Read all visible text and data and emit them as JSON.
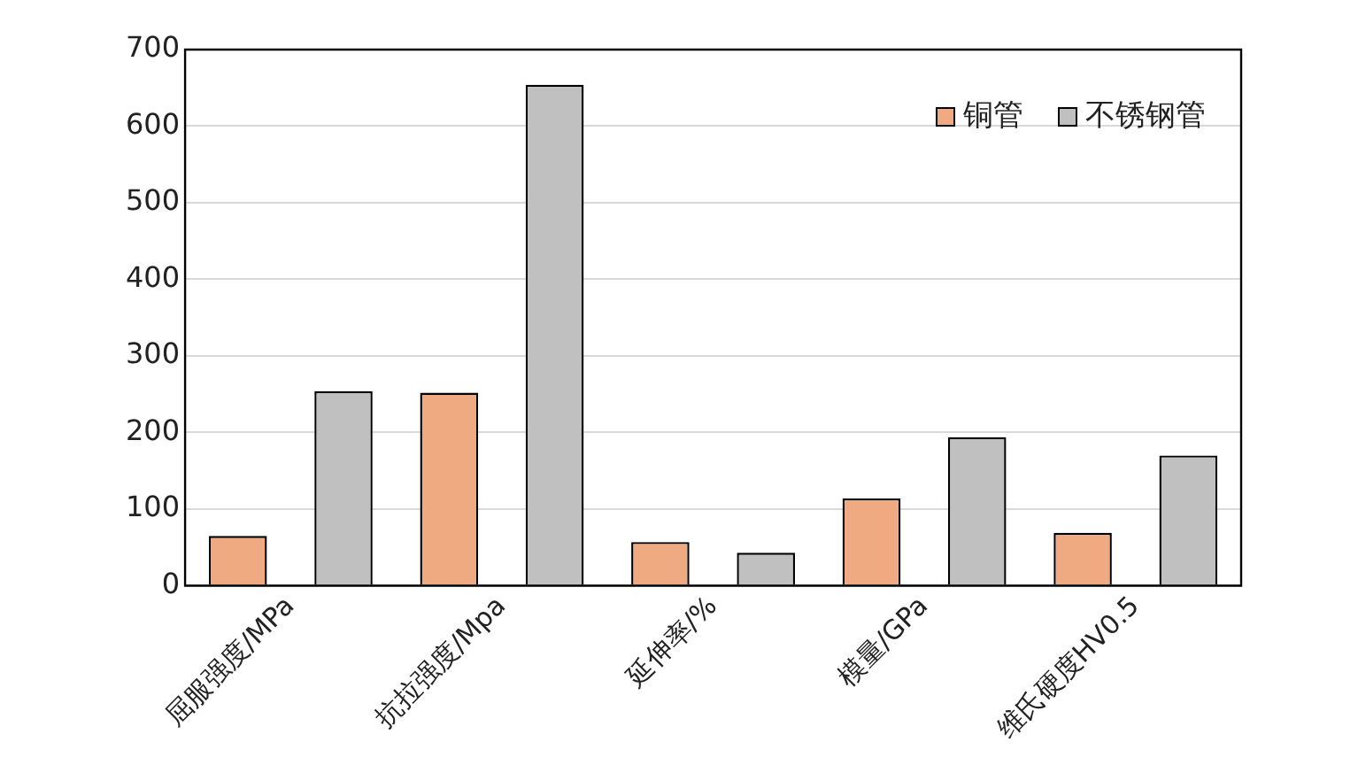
{
  "chart_data": {
    "type": "bar",
    "categories": [
      "屈服强度/MPa",
      "抗拉强度/Mpa",
      "延伸率/%",
      "模量/GPa",
      "维氏硬度HV0.5"
    ],
    "series": [
      {
        "name": "铜管",
        "color": "#f0aa82",
        "values": [
          65,
          252,
          57,
          114,
          69
        ]
      },
      {
        "name": "不锈钢管",
        "color": "#c0c0c0",
        "values": [
          254,
          654,
          43,
          194,
          170
        ]
      }
    ],
    "ylim": [
      0,
      700
    ],
    "yticks": [
      0,
      100,
      200,
      300,
      400,
      500,
      600,
      700
    ],
    "grid": "y",
    "legend": "top right"
  }
}
